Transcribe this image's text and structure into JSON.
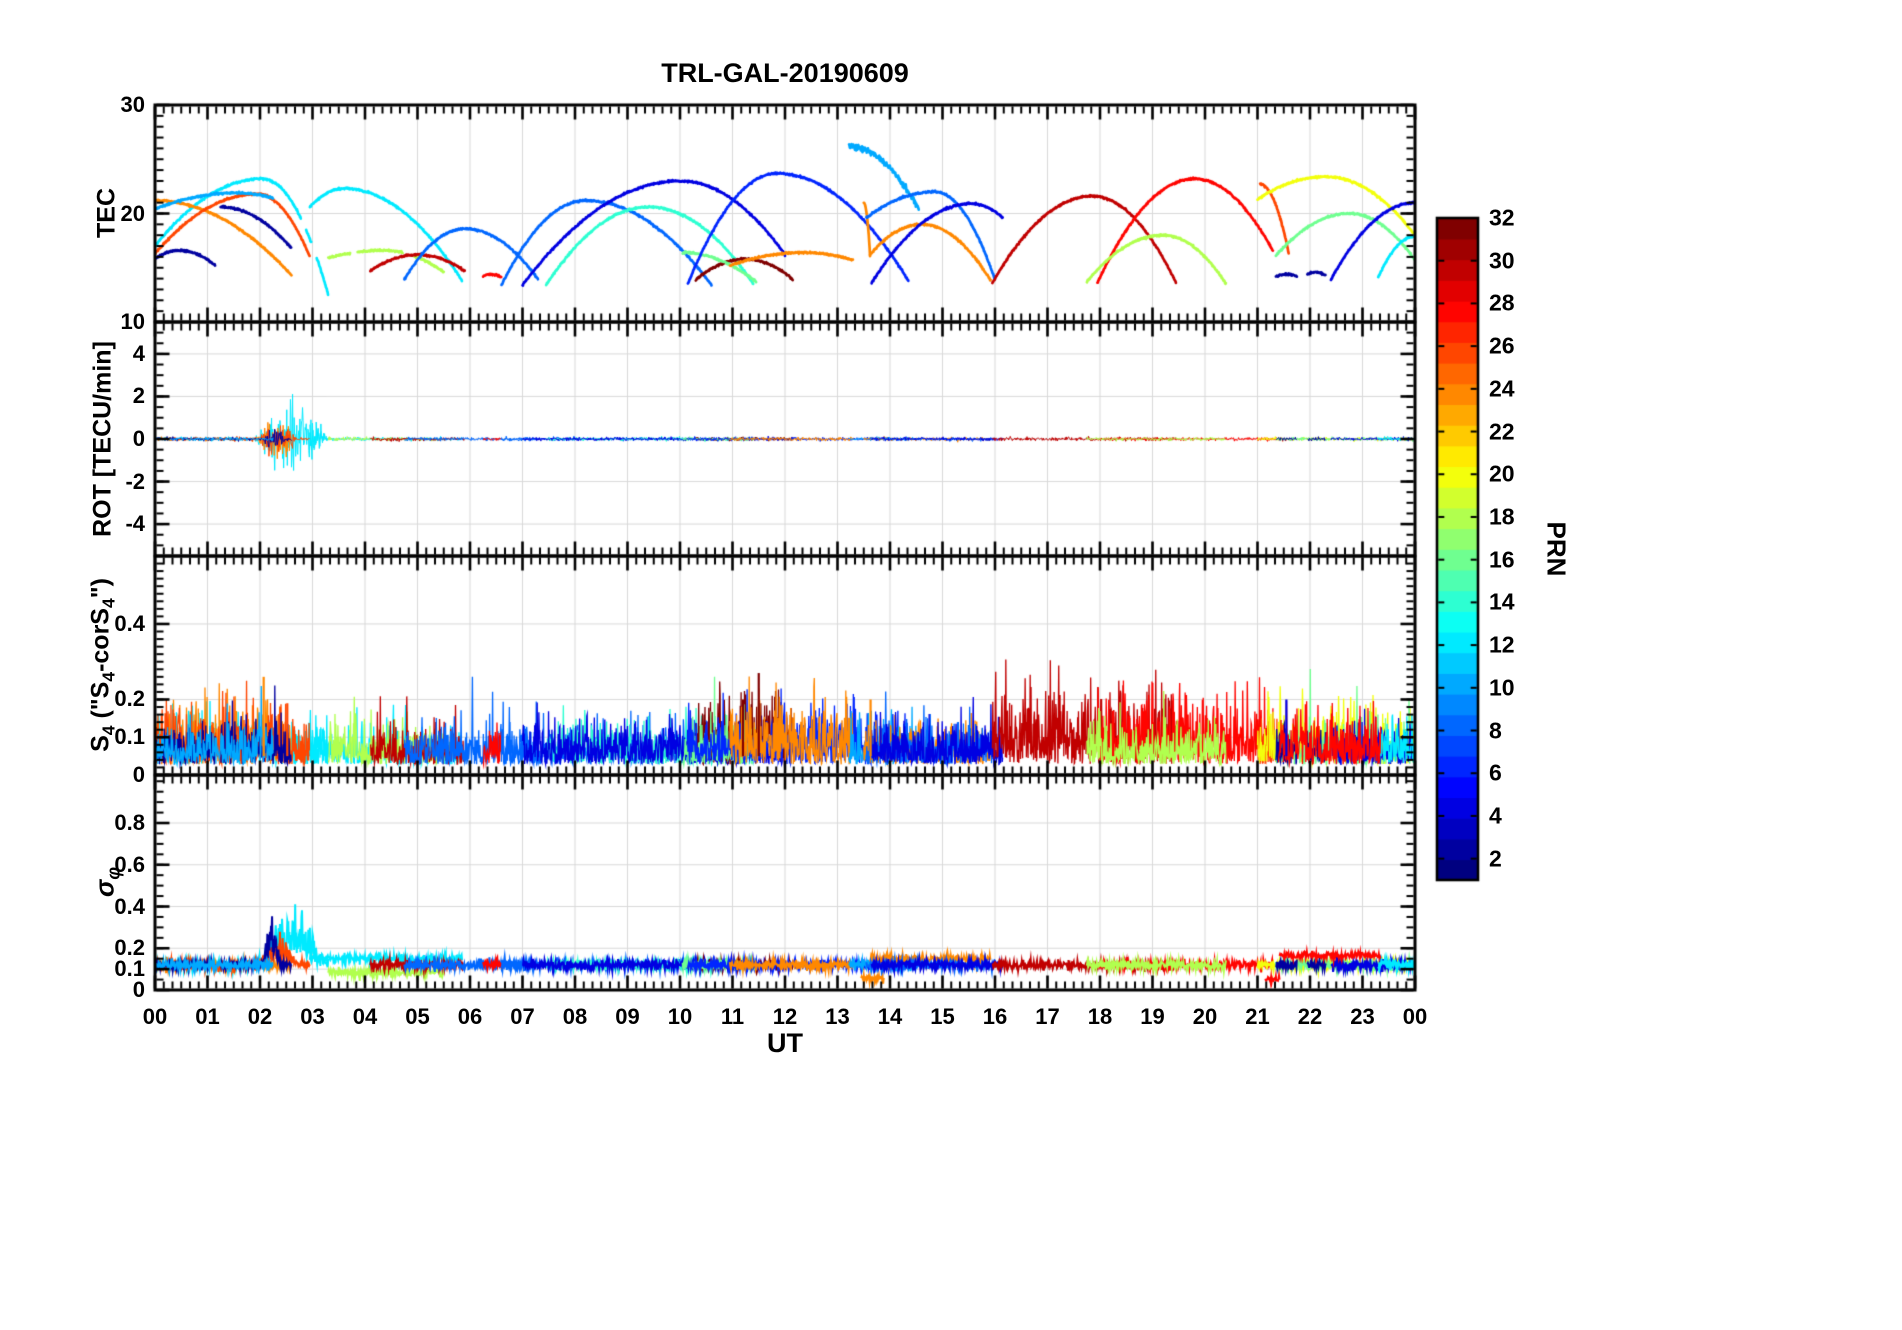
{
  "title": "TRL-GAL-20190609",
  "labels": {
    "ut": "UT",
    "tec": "TEC",
    "rot": "ROT [TECU/min]",
    "s4_parts": [
      "S",
      "4",
      " (\"S",
      "4",
      "-corS",
      "4",
      "\")"
    ],
    "sigma_main": "σ",
    "sigma_sub": "φ",
    "prn": "PRN"
  },
  "chart_data": {
    "type": "line",
    "title": "TRL-GAL-20190609",
    "xlabel": "UT",
    "x_range": [
      0,
      24
    ],
    "x_major": 1,
    "x_minor_per_hour": 6,
    "x_tick_labels": [
      "00",
      "01",
      "02",
      "03",
      "04",
      "05",
      "06",
      "07",
      "08",
      "09",
      "10",
      "11",
      "12",
      "13",
      "14",
      "15",
      "16",
      "17",
      "18",
      "19",
      "20",
      "21",
      "22",
      "23",
      "00"
    ],
    "colors": {
      "grid": "#d9d9d9",
      "axis": "#000000",
      "background": "#ffffff"
    },
    "colorbar": {
      "label": "PRN",
      "min": 1,
      "max": 32,
      "colormap": "jet",
      "ticks": [
        2,
        4,
        6,
        8,
        10,
        12,
        14,
        16,
        18,
        20,
        22,
        24,
        26,
        28,
        30,
        32
      ]
    },
    "panels": [
      {
        "id": "tec",
        "ylabel": "TEC",
        "ylim": [
          10,
          30
        ],
        "minor": 1,
        "yticks": [
          {
            "v": 30,
            "label": "30"
          },
          {
            "v": 20,
            "label": "20"
          },
          {
            "v": 10,
            "label": "10"
          }
        ]
      },
      {
        "id": "rot",
        "ylabel": "ROT [TECU/min]",
        "ylim": [
          -5.5,
          5.5
        ],
        "minor": 0.5,
        "yticks": [
          {
            "v": 4,
            "label": "4"
          },
          {
            "v": 2,
            "label": "2"
          },
          {
            "v": 0,
            "label": "0"
          },
          {
            "v": -2,
            "label": "-2"
          },
          {
            "v": -4,
            "label": "-4"
          }
        ]
      },
      {
        "id": "s4",
        "ylabel": "S4 (\"S4-corS4\")",
        "ylim": [
          0,
          0.58
        ],
        "minor": 0.02,
        "yticks": [
          {
            "v": 0.4,
            "label": "0.4"
          },
          {
            "v": 0.2,
            "label": "0.2"
          },
          {
            "v": 0.1,
            "label": "0.1"
          },
          {
            "v": 0,
            "label": "0"
          }
        ]
      },
      {
        "id": "sigma_phi",
        "ylabel": "sigma_phi",
        "ylim": [
          0,
          1.03
        ],
        "minor": 0.05,
        "yticks": [
          {
            "v": 0.8,
            "label": "0.8"
          },
          {
            "v": 0.6,
            "label": "0.6"
          },
          {
            "v": 0.4,
            "label": "0.4"
          },
          {
            "v": 0.2,
            "label": "0.2"
          },
          {
            "v": 0.1,
            "label": "0.1"
          },
          {
            "v": 0,
            "label": "0"
          }
        ]
      }
    ],
    "tec_arcs": [
      {
        "p": 12,
        "t0": 0,
        "tp": 2.05,
        "t1": 3.3,
        "v0": 17,
        "pk": 23.2,
        "v1": 12.5,
        "gaps": [
          [
            2.78,
            2.88
          ],
          [
            2.98,
            3.08
          ]
        ],
        "sgb": {
          "t0": 1.9,
          "t1": 3.3,
          "a": 0.2
        },
        "s4a": 0.06
      },
      {
        "p": 24,
        "t0": 0,
        "tp": 0,
        "t1": 2.6,
        "v0": 21.2,
        "pk": 21.2,
        "v1": 14.3,
        "s4a": 0.07
      },
      {
        "p": 26,
        "t0": 0,
        "tp": 1.95,
        "t1": 2.95,
        "v0": 16.3,
        "pk": 21.8,
        "v1": 16,
        "s4a": 0.07,
        "sgb": {
          "t0": 1.95,
          "t1": 2.75,
          "a": 0.1
        }
      },
      {
        "p": 2,
        "t0": 0,
        "tp": 0.45,
        "t1": 1.15,
        "v0": 15.8,
        "pk": 16.6,
        "v1": 15.2
      },
      {
        "p": 2,
        "t0": 1.25,
        "tp": 1.25,
        "t1": 2.6,
        "v0": 20.6,
        "pk": 20.6,
        "v1": 16.8,
        "sgb": {
          "t0": 2.05,
          "t1": 2.4,
          "a": 0.2
        }
      },
      {
        "p": 10,
        "t0": 0,
        "tp": 1.55,
        "t1": 2.25,
        "v0": 20.4,
        "pk": 21.9,
        "v1": 21.4
      },
      {
        "p": 12,
        "t0": 2.95,
        "tp": 3.6,
        "t1": 5.85,
        "v0": 20.6,
        "pk": 22.3,
        "v1": 13.8,
        "sg": 0.15
      },
      {
        "p": 18,
        "t0": 3.3,
        "tp": 4.35,
        "t1": 5.5,
        "v0": 15.9,
        "pk": 16.6,
        "v1": 14.6,
        "gaps": [
          [
            3.72,
            3.86
          ],
          [
            4.72,
            4.88
          ]
        ],
        "sg": 0.085
      },
      {
        "p": 30,
        "t0": 4.1,
        "tp": 5,
        "t1": 5.9,
        "v0": 14.7,
        "pk": 16.2,
        "v1": 14.7
      },
      {
        "p": 8,
        "t0": 4.75,
        "tp": 5.9,
        "t1": 7.3,
        "v0": 13.9,
        "pk": 18.6,
        "v1": 13.9
      },
      {
        "p": 28,
        "t0": 6.25,
        "tp": 6.4,
        "t1": 6.6,
        "v0": 14.2,
        "pk": 14.4,
        "v1": 14.1
      },
      {
        "p": 8,
        "t0": 6.6,
        "tp": 8.2,
        "t1": 10.6,
        "v0": 13.4,
        "pk": 21.2,
        "v1": 13.4
      },
      {
        "p": 14,
        "t0": 7.45,
        "tp": 9.4,
        "t1": 11.4,
        "v0": 13.4,
        "pk": 20.6,
        "v1": 13.5
      },
      {
        "p": 4,
        "t0": 7,
        "tp": 10,
        "t1": 12,
        "v0": 13.4,
        "pk": 23,
        "v1": 16.2
      },
      {
        "p": 32,
        "t0": 10.3,
        "tp": 11.25,
        "t1": 12.15,
        "v0": 13.9,
        "pk": 15.8,
        "v1": 13.9,
        "s4a": 0.09
      },
      {
        "p": 16,
        "t0": 10.05,
        "tp": 10.05,
        "t1": 11.45,
        "v0": 16.4,
        "pk": 16.4,
        "v1": 13.7
      },
      {
        "p": 6,
        "t0": 10.15,
        "tp": 11.85,
        "t1": 14.35,
        "v0": 13.5,
        "pk": 23.7,
        "v1": 13.8,
        "s4a": 0.07
      },
      {
        "p": 24,
        "t0": 10.95,
        "tp": 12.35,
        "t1": 13.3,
        "v0": 15.2,
        "pk": 16.4,
        "v1": 15.7,
        "s4a": 0.08
      },
      {
        "p": 10,
        "t0": 13.22,
        "tp": 13.22,
        "t1": 14.55,
        "v0": 26.2,
        "pk": 26.2,
        "v1": 20.4,
        "nz": 0.12
      },
      {
        "p": 24,
        "t0": 13.5,
        "tp": 13.5,
        "t1": 13.62,
        "v0": 21,
        "pk": 21,
        "v1": 16.2,
        "sg": -1
      },
      {
        "p": 24,
        "t0": 13.62,
        "tp": 14.6,
        "t1": 15.92,
        "v0": 16.2,
        "pk": 19,
        "v1": 13.8,
        "sg": 0.148
      },
      {
        "p": 8,
        "t0": 13.55,
        "tp": 14.85,
        "t1": 16,
        "v0": 19.6,
        "pk": 22,
        "v1": 13.9
      },
      {
        "p": 4,
        "t0": 13.65,
        "tp": 15.55,
        "t1": 16.15,
        "v0": 13.6,
        "pk": 20.9,
        "v1": 19.6
      },
      {
        "p": 30,
        "t0": 15.95,
        "tp": 17.85,
        "t1": 19.45,
        "v0": 13.6,
        "pk": 21.6,
        "v1": 13.6,
        "s4a": 0.09
      },
      {
        "p": 28,
        "t0": 17.95,
        "tp": 19.8,
        "t1": 21.3,
        "v0": 13.6,
        "pk": 23.2,
        "v1": 16.5,
        "s4a": 0.08
      },
      {
        "p": 18,
        "t0": 17.75,
        "tp": 19.2,
        "t1": 20.4,
        "v0": 13.7,
        "pk": 18,
        "v1": 13.5
      },
      {
        "p": 26,
        "t0": 21.05,
        "tp": 21.05,
        "t1": 21.6,
        "v0": 22.7,
        "pk": 22.7,
        "v1": 16.2,
        "sg": -1
      },
      {
        "p": 20,
        "t0": 21,
        "tp": 22.3,
        "t1": 24,
        "v0": 21.3,
        "pk": 23.4,
        "v1": 18,
        "s4a": 0.07
      },
      {
        "p": 16,
        "t0": 21.35,
        "tp": 22.75,
        "t1": 24,
        "v0": 16.1,
        "pk": 20,
        "v1": 15.7
      },
      {
        "p": 2,
        "t0": 21.35,
        "tp": 21.55,
        "t1": 21.75,
        "v0": 14.2,
        "pk": 14.4,
        "v1": 14.2
      },
      {
        "p": 2,
        "t0": 21.95,
        "tp": 22.1,
        "t1": 22.3,
        "v0": 14.4,
        "pk": 14.6,
        "v1": 14.3
      },
      {
        "p": 4,
        "t0": 22.4,
        "tp": 24,
        "t1": 24,
        "v0": 13.9,
        "pk": 21,
        "v1": 21
      },
      {
        "p": 12,
        "t0": 23.3,
        "tp": 24,
        "t1": 24,
        "v0": 14.1,
        "pk": 17.9,
        "v1": 17.9
      }
    ],
    "rot": {
      "amp": 0.04,
      "bursts": [
        {
          "p": 12,
          "t0": 1.85,
          "t1": 3.3,
          "a": 0.75
        },
        {
          "p": 24,
          "t0": 1.9,
          "t1": 2.8,
          "a": 0.45
        },
        {
          "p": 26,
          "t0": 1.95,
          "t1": 2.75,
          "a": 0.4
        },
        {
          "p": 2,
          "t0": 2.05,
          "t1": 2.5,
          "a": 0.3
        }
      ]
    },
    "s4": {
      "base": 0.028,
      "amp": 0.05,
      "spike_prob": 0.02,
      "spike_max": 0.06,
      "spikes": [
        {
          "p": 24,
          "t": 2.07,
          "v": 0.26
        },
        {
          "p": 26,
          "t": 2.52,
          "v": 0.19
        },
        {
          "p": 32,
          "t": 11.5,
          "v": 0.27
        },
        {
          "p": 32,
          "t": 11.2,
          "v": 0.2
        },
        {
          "p": 24,
          "t": 13.63,
          "v": 0.2
        },
        {
          "p": 28,
          "t": 18.25,
          "v": 0.17
        },
        {
          "p": 4,
          "t": 21.55,
          "v": 0.2
        }
      ],
      "extra": [
        {
          "p": 28,
          "t0": 21.4,
          "t1": 23.35,
          "amp": 0.07
        }
      ]
    },
    "sigma": {
      "level": 0.12,
      "noise": 0.011,
      "extra": [
        {
          "p": 24,
          "t0": 13.45,
          "t1": 13.88,
          "lv": 0.055
        },
        {
          "p": 28,
          "t0": 21.15,
          "t1": 21.42,
          "lv": 0.05
        },
        {
          "p": 28,
          "t0": 21.42,
          "t1": 23.35,
          "lv": 0.165
        }
      ]
    }
  }
}
